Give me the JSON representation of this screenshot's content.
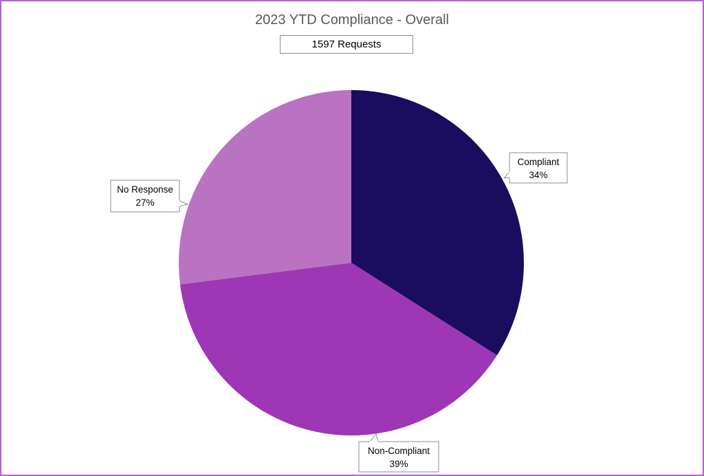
{
  "chart_data": {
    "type": "pie",
    "title": "2023 YTD Compliance - Overall",
    "subtitle": "1597 Requests",
    "slices": [
      {
        "label": "Compliant",
        "value": 34,
        "display": "34%",
        "color": "#1a0c5e"
      },
      {
        "label": "Non-Compliant",
        "value": 39,
        "display": "39%",
        "color": "#9e36b6"
      },
      {
        "label": "No Response",
        "value": 27,
        "display": "27%",
        "color": "#ba72c3"
      }
    ]
  }
}
